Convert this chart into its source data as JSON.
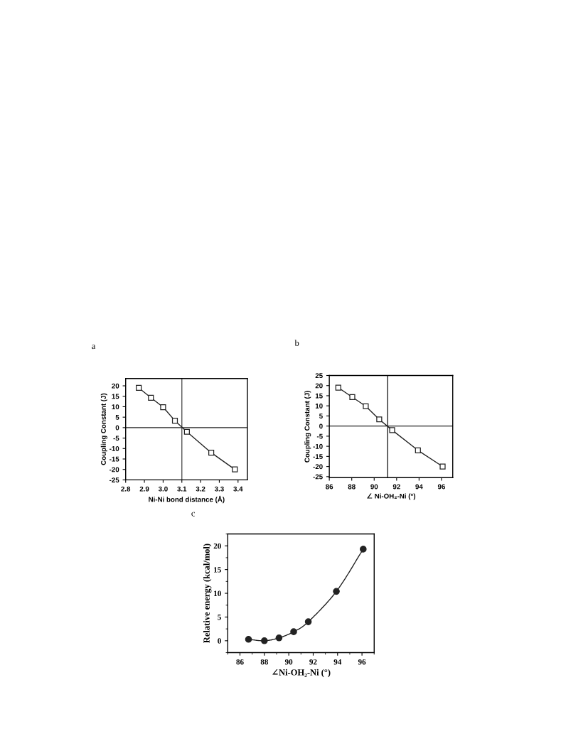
{
  "chart_data": [
    {
      "type": "line",
      "title": "a",
      "xlabel": "Ni-Ni bond distance (Å)",
      "ylabel": "Coupling Constant (J)",
      "marker": "square",
      "line_style": "solid",
      "x": [
        2.87,
        2.935,
        3.0,
        3.063,
        3.127,
        3.257,
        3.383
      ],
      "series": [
        {
          "color": "#222222",
          "values": [
            19,
            14.3,
            9.8,
            3.3,
            -2,
            -12,
            -20
          ]
        }
      ],
      "xlim": [
        2.8,
        3.45
      ],
      "xticks": [
        2.8,
        2.9,
        {
          "value": 3.0,
          "label": "3.0"
        },
        3.1,
        3.2,
        3.3,
        3.4
      ],
      "ylim": [
        -25,
        23.5
      ],
      "yticks": [
        -25,
        -20,
        -15,
        -10,
        -5,
        0,
        5,
        10,
        15,
        20
      ],
      "ref_lines": [
        {
          "axis": "x",
          "value": 3.1,
          "color": "#555555"
        },
        {
          "axis": "y",
          "value": 0,
          "color": "#222222"
        }
      ]
    },
    {
      "type": "line",
      "title": "b",
      "xlabel": "∠ Ni-OH₂-Ni (°)",
      "ylabel": "Coupling Constant (J)",
      "marker": "square",
      "line_style": "solid",
      "x": [
        86.8,
        88.05,
        89.25,
        90.45,
        91.6,
        93.9,
        96.1
      ],
      "series": [
        {
          "color": "#222222",
          "values": [
            19,
            14.3,
            9.8,
            3.3,
            -2,
            -12,
            -20
          ]
        }
      ],
      "xlim": [
        86,
        97
      ],
      "xticks": [
        86,
        88,
        90,
        92,
        94,
        96
      ],
      "ylim": [
        -25.5,
        25
      ],
      "yticks": [
        -25,
        -20,
        -15,
        -10,
        -5,
        0,
        5,
        10,
        15,
        20,
        25
      ],
      "ref_lines": [
        {
          "axis": "x",
          "value": 91.2,
          "color": "#222222"
        },
        {
          "axis": "y",
          "value": 0,
          "color": "#222222"
        }
      ]
    },
    {
      "type": "line",
      "title": "c",
      "xlabel": "∠Ni-OH₂-Ni (°)",
      "ylabel": "Relative energy (kcal/mol)",
      "marker": "circle",
      "line_style": "solid",
      "x": [
        86.7,
        88.0,
        89.2,
        90.4,
        91.6,
        93.9,
        96.1
      ],
      "series": [
        {
          "color": "#222222",
          "values": [
            0.3,
            0,
            0.6,
            1.9,
            4.0,
            10.4,
            19.3
          ]
        }
      ],
      "xlim": [
        85,
        97
      ],
      "xticks": [
        86,
        88,
        90,
        92,
        94,
        96
      ],
      "ylim": [
        -2.5,
        22.5
      ],
      "yticks": [
        0,
        5,
        10,
        15,
        20
      ]
    }
  ]
}
